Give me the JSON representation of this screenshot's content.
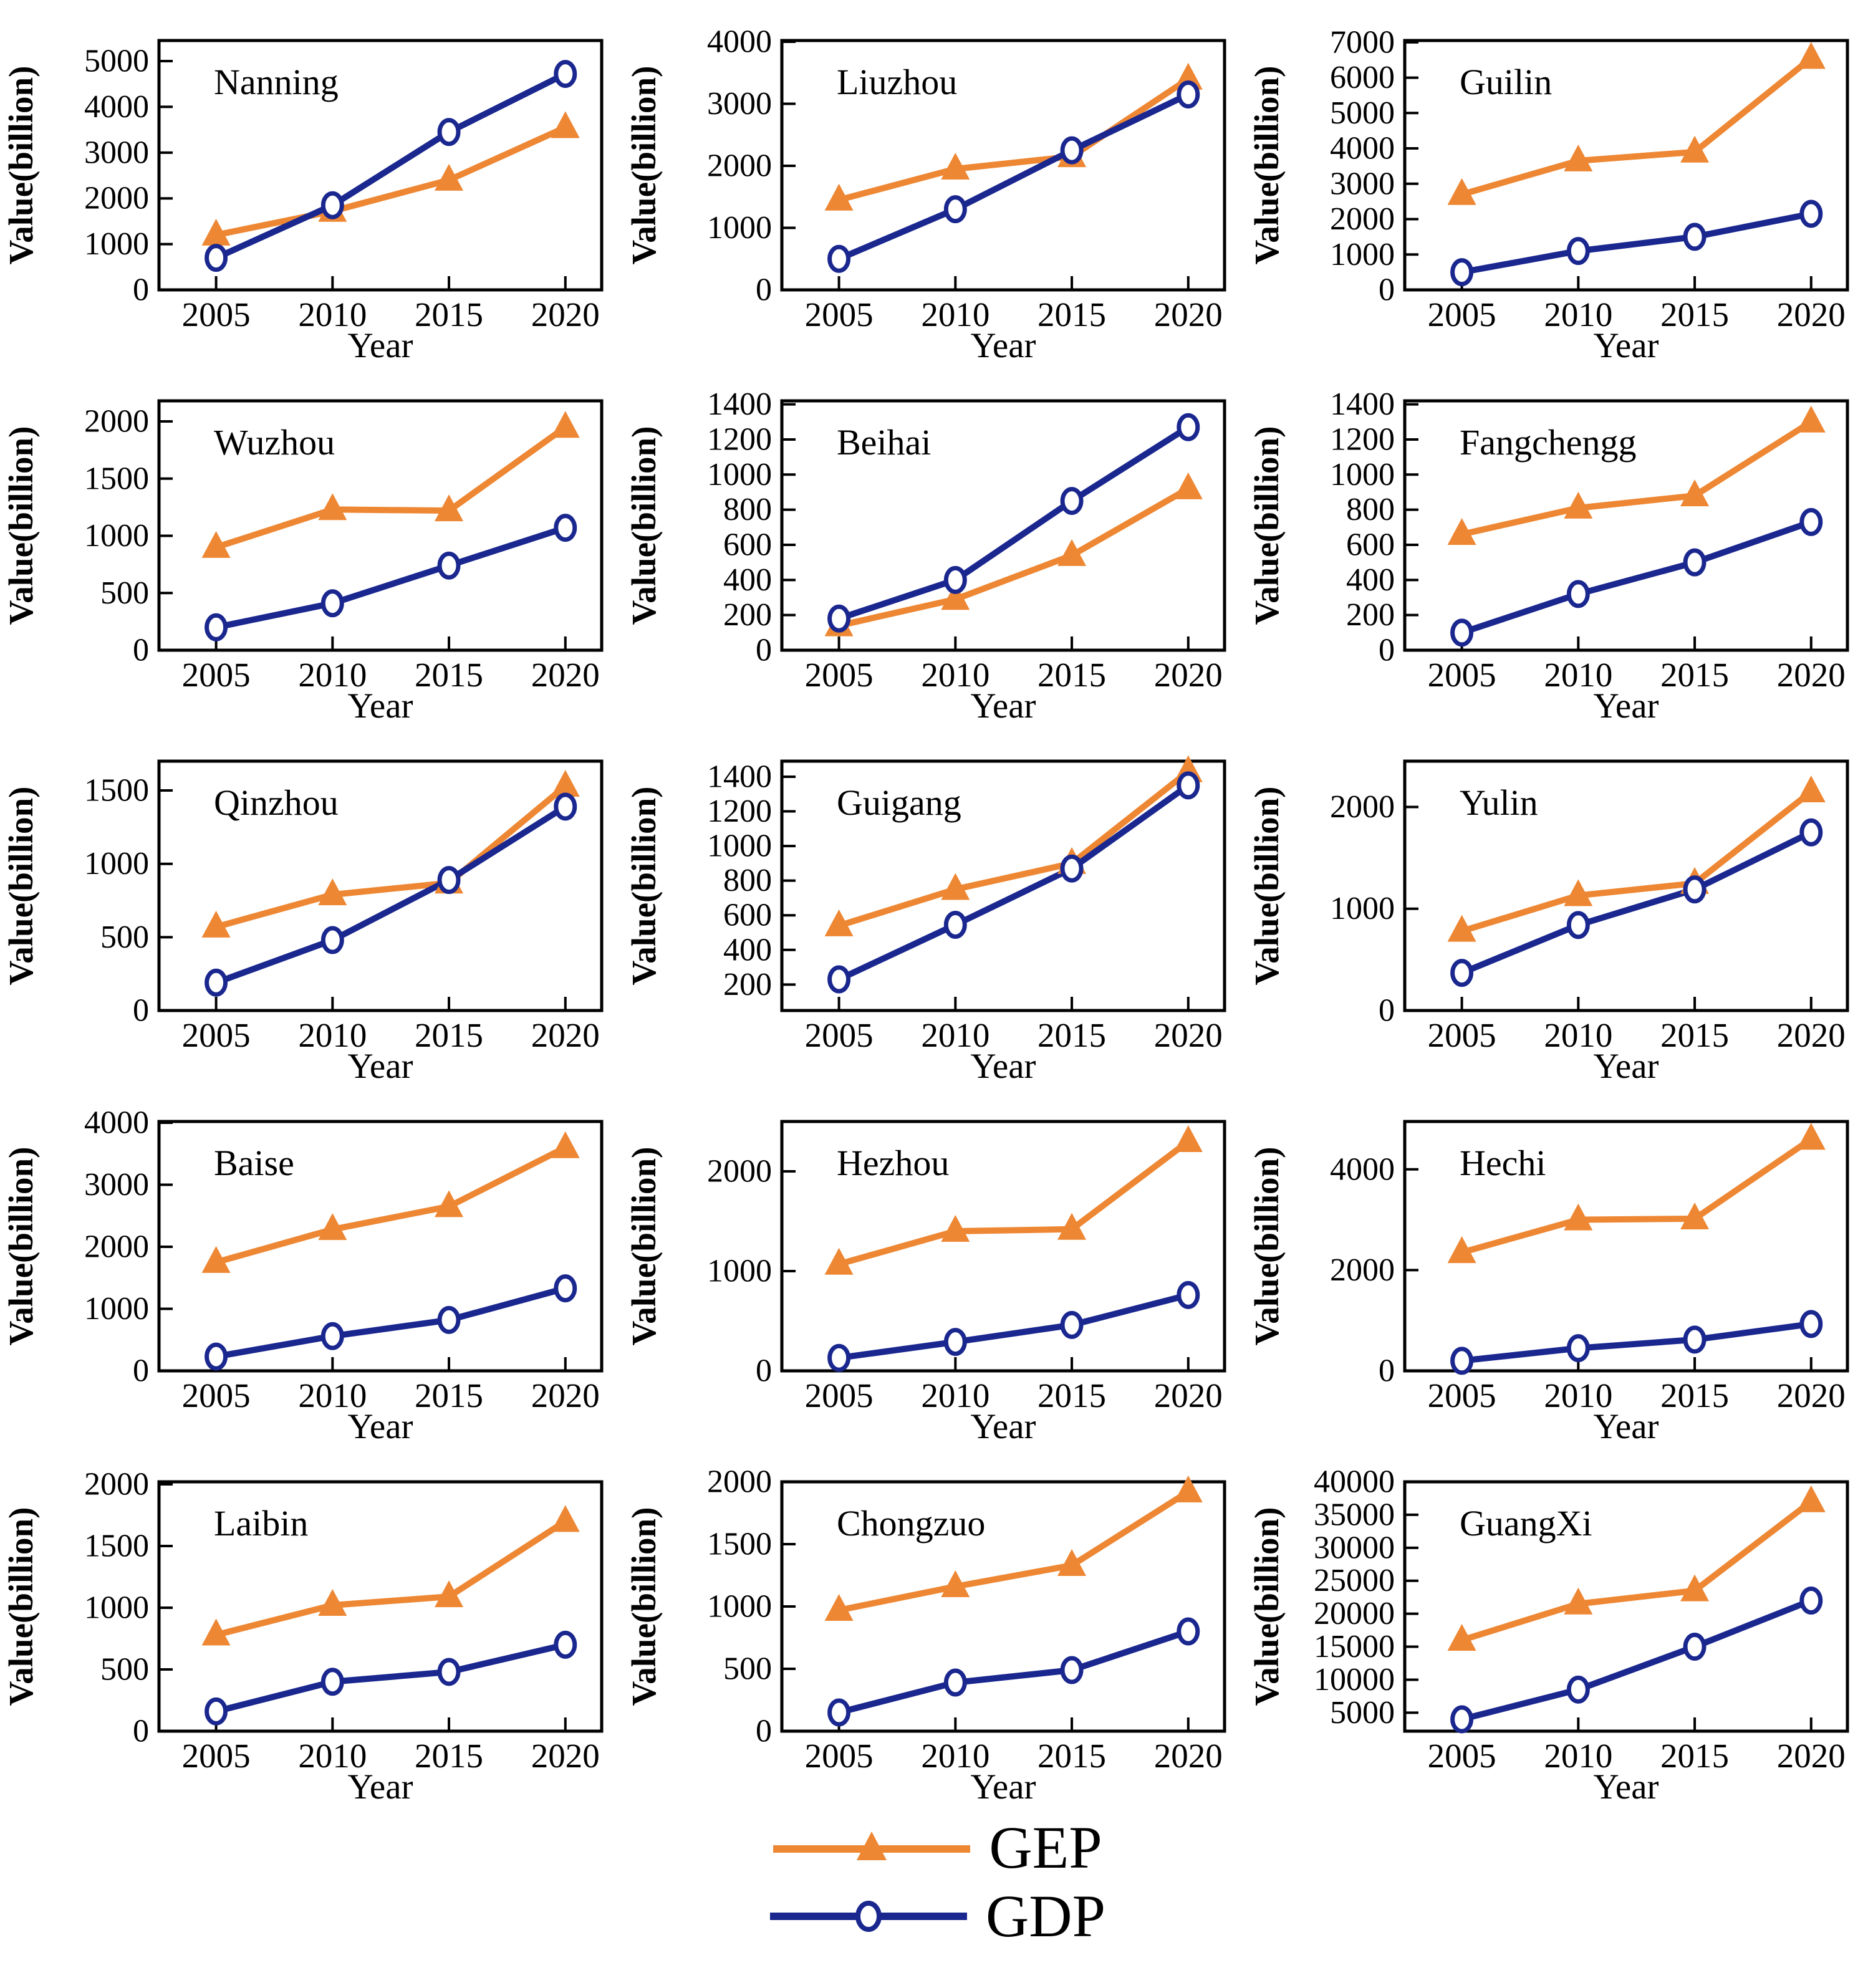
{
  "page_title": "GEP vs GDP line charts for Guangxi cities 2005-2020",
  "colors": {
    "gep": "#EE8733",
    "gdp": "#1A278F",
    "axis": "#000000",
    "background": "#ffffff"
  },
  "axis": {
    "ylabel": "Value(billion)",
    "xlabel": "Year"
  },
  "years": [
    2005,
    2010,
    2015,
    2020
  ],
  "legend": {
    "items": [
      {
        "label": "GEP",
        "marker": "filled-triangle",
        "color": "#EE8733"
      },
      {
        "label": "GDP",
        "marker": "open-circle",
        "color": "#1A278F"
      }
    ]
  },
  "chart_data": [
    {
      "type": "line",
      "title": "Nanning",
      "xlabel": "Year",
      "ylabel": "Value(billion)",
      "x": [
        2005,
        2010,
        2015,
        2020
      ],
      "ylim": [
        0,
        5450
      ],
      "yticks": [
        0,
        1000,
        2000,
        3000,
        4000,
        5000
      ],
      "series": [
        {
          "name": "GEP",
          "values": [
            1200,
            1720,
            2400,
            3550
          ]
        },
        {
          "name": "GDP",
          "values": [
            700,
            1850,
            3450,
            4720
          ]
        }
      ]
    },
    {
      "type": "line",
      "title": "Liuzhou",
      "xlabel": "Year",
      "ylabel": "Value(billion)",
      "x": [
        2005,
        2010,
        2015,
        2020
      ],
      "ylim": [
        0,
        4020
      ],
      "yticks": [
        0,
        1000,
        2000,
        3000,
        4000
      ],
      "series": [
        {
          "name": "GEP",
          "values": [
            1450,
            1950,
            2150,
            3400
          ]
        },
        {
          "name": "GDP",
          "values": [
            500,
            1300,
            2250,
            3150
          ]
        }
      ]
    },
    {
      "type": "line",
      "title": "Guilin",
      "xlabel": "Year",
      "ylabel": "Value(billion)",
      "x": [
        2005,
        2010,
        2015,
        2020
      ],
      "ylim": [
        0,
        7050
      ],
      "yticks": [
        0,
        1000,
        2000,
        3000,
        4000,
        5000,
        6000,
        7000
      ],
      "series": [
        {
          "name": "GEP",
          "values": [
            2700,
            3650,
            3900,
            6550
          ]
        },
        {
          "name": "GDP",
          "values": [
            500,
            1100,
            1500,
            2150
          ]
        }
      ]
    },
    {
      "type": "line",
      "title": "Wuzhou",
      "xlabel": "Year",
      "ylabel": "Value(billion)",
      "x": [
        2005,
        2010,
        2015,
        2020
      ],
      "ylim": [
        0,
        2180
      ],
      "yticks": [
        0,
        500,
        1000,
        1500,
        2000
      ],
      "series": [
        {
          "name": "GEP",
          "values": [
            900,
            1230,
            1220,
            1950
          ]
        },
        {
          "name": "GDP",
          "values": [
            200,
            410,
            740,
            1070
          ]
        }
      ]
    },
    {
      "type": "line",
      "title": "Beihai",
      "xlabel": "Year",
      "ylabel": "Value(billion)",
      "x": [
        2005,
        2010,
        2015,
        2020
      ],
      "ylim": [
        0,
        1420
      ],
      "yticks": [
        0,
        200,
        400,
        600,
        800,
        1000,
        1200,
        1400
      ],
      "series": [
        {
          "name": "GEP",
          "values": [
            140,
            290,
            540,
            920
          ]
        },
        {
          "name": "GDP",
          "values": [
            180,
            400,
            850,
            1270
          ]
        }
      ]
    },
    {
      "type": "line",
      "title": "Fangchengg",
      "xlabel": "Year",
      "ylabel": "Value(billion)",
      "x": [
        2005,
        2010,
        2015,
        2020
      ],
      "ylim": [
        0,
        1420
      ],
      "yticks": [
        0,
        200,
        400,
        600,
        800,
        1000,
        1200,
        1400
      ],
      "series": [
        {
          "name": "GEP",
          "values": [
            660,
            810,
            880,
            1300
          ]
        },
        {
          "name": "GDP",
          "values": [
            100,
            320,
            500,
            730
          ]
        }
      ]
    },
    {
      "type": "line",
      "title": "Qinzhou",
      "xlabel": "Year",
      "ylabel": "Value(billion)",
      "x": [
        2005,
        2010,
        2015,
        2020
      ],
      "ylim": [
        0,
        1700
      ],
      "yticks": [
        0,
        500,
        1000,
        1500
      ],
      "series": [
        {
          "name": "GEP",
          "values": [
            570,
            790,
            870,
            1530
          ]
        },
        {
          "name": "GDP",
          "values": [
            190,
            480,
            890,
            1390
          ]
        }
      ]
    },
    {
      "type": "line",
      "title": "Guigang",
      "xlabel": "Year",
      "ylabel": "Value(billion)",
      "x": [
        2005,
        2010,
        2015,
        2020
      ],
      "ylim": [
        50,
        1490
      ],
      "yticks": [
        200,
        400,
        600,
        800,
        1000,
        1200,
        1400
      ],
      "series": [
        {
          "name": "GEP",
          "values": [
            540,
            750,
            900,
            1430
          ]
        },
        {
          "name": "GDP",
          "values": [
            230,
            545,
            870,
            1350
          ]
        }
      ]
    },
    {
      "type": "line",
      "title": "Yulin",
      "xlabel": "Year",
      "ylabel": "Value(billion)",
      "x": [
        2005,
        2010,
        2015,
        2020
      ],
      "ylim": [
        0,
        2450
      ],
      "yticks": [
        0,
        1000,
        2000
      ],
      "series": [
        {
          "name": "GEP",
          "values": [
            780,
            1130,
            1250,
            2150
          ]
        },
        {
          "name": "GDP",
          "values": [
            370,
            840,
            1190,
            1750
          ]
        }
      ]
    },
    {
      "type": "line",
      "title": "Baise",
      "xlabel": "Year",
      "ylabel": "Value(billion)",
      "x": [
        2005,
        2010,
        2015,
        2020
      ],
      "ylim": [
        0,
        4020
      ],
      "yticks": [
        0,
        1000,
        2000,
        3000,
        4000
      ],
      "series": [
        {
          "name": "GEP",
          "values": [
            1750,
            2280,
            2650,
            3600
          ]
        },
        {
          "name": "GDP",
          "values": [
            230,
            560,
            820,
            1330
          ]
        }
      ]
    },
    {
      "type": "line",
      "title": "Hezhou",
      "xlabel": "Year",
      "ylabel": "Value(billion)",
      "x": [
        2005,
        2010,
        2015,
        2020
      ],
      "ylim": [
        0,
        2500
      ],
      "yticks": [
        0,
        1000,
        2000
      ],
      "series": [
        {
          "name": "GEP",
          "values": [
            1070,
            1400,
            1420,
            2300
          ]
        },
        {
          "name": "GDP",
          "values": [
            130,
            290,
            460,
            760
          ]
        }
      ]
    },
    {
      "type": "line",
      "title": "Hechi",
      "xlabel": "Year",
      "ylabel": "Value(billion)",
      "x": [
        2005,
        2010,
        2015,
        2020
      ],
      "ylim": [
        0,
        4950
      ],
      "yticks": [
        0,
        2000,
        4000
      ],
      "series": [
        {
          "name": "GEP",
          "values": [
            2350,
            3000,
            3020,
            4600
          ]
        },
        {
          "name": "GDP",
          "values": [
            200,
            450,
            620,
            930
          ]
        }
      ]
    },
    {
      "type": "line",
      "title": "Laibin",
      "xlabel": "Year",
      "ylabel": "Value(billion)",
      "x": [
        2005,
        2010,
        2015,
        2020
      ],
      "ylim": [
        0,
        2020
      ],
      "yticks": [
        0,
        500,
        1000,
        1500,
        2000
      ],
      "series": [
        {
          "name": "GEP",
          "values": [
            780,
            1020,
            1090,
            1700
          ]
        },
        {
          "name": "GDP",
          "values": [
            160,
            400,
            480,
            700
          ]
        }
      ]
    },
    {
      "type": "line",
      "title": "Chongzuo",
      "xlabel": "Year",
      "ylabel": "Value(billion)",
      "x": [
        2005,
        2010,
        2015,
        2020
      ],
      "ylim": [
        0,
        2000
      ],
      "yticks": [
        0,
        500,
        1000,
        1500,
        2000
      ],
      "series": [
        {
          "name": "GEP",
          "values": [
            970,
            1160,
            1330,
            1920
          ]
        },
        {
          "name": "GDP",
          "values": [
            150,
            390,
            490,
            800
          ]
        }
      ]
    },
    {
      "type": "line",
      "title": "GuangXi",
      "xlabel": "Year",
      "ylabel": "Value(billion)",
      "x": [
        2005,
        2010,
        2015,
        2020
      ],
      "ylim": [
        2200,
        40000
      ],
      "yticks": [
        5000,
        10000,
        15000,
        20000,
        25000,
        30000,
        35000,
        40000
      ],
      "series": [
        {
          "name": "GEP",
          "values": [
            16000,
            21500,
            23500,
            37000
          ]
        },
        {
          "name": "GDP",
          "values": [
            4000,
            8500,
            15000,
            22000
          ]
        }
      ]
    }
  ]
}
